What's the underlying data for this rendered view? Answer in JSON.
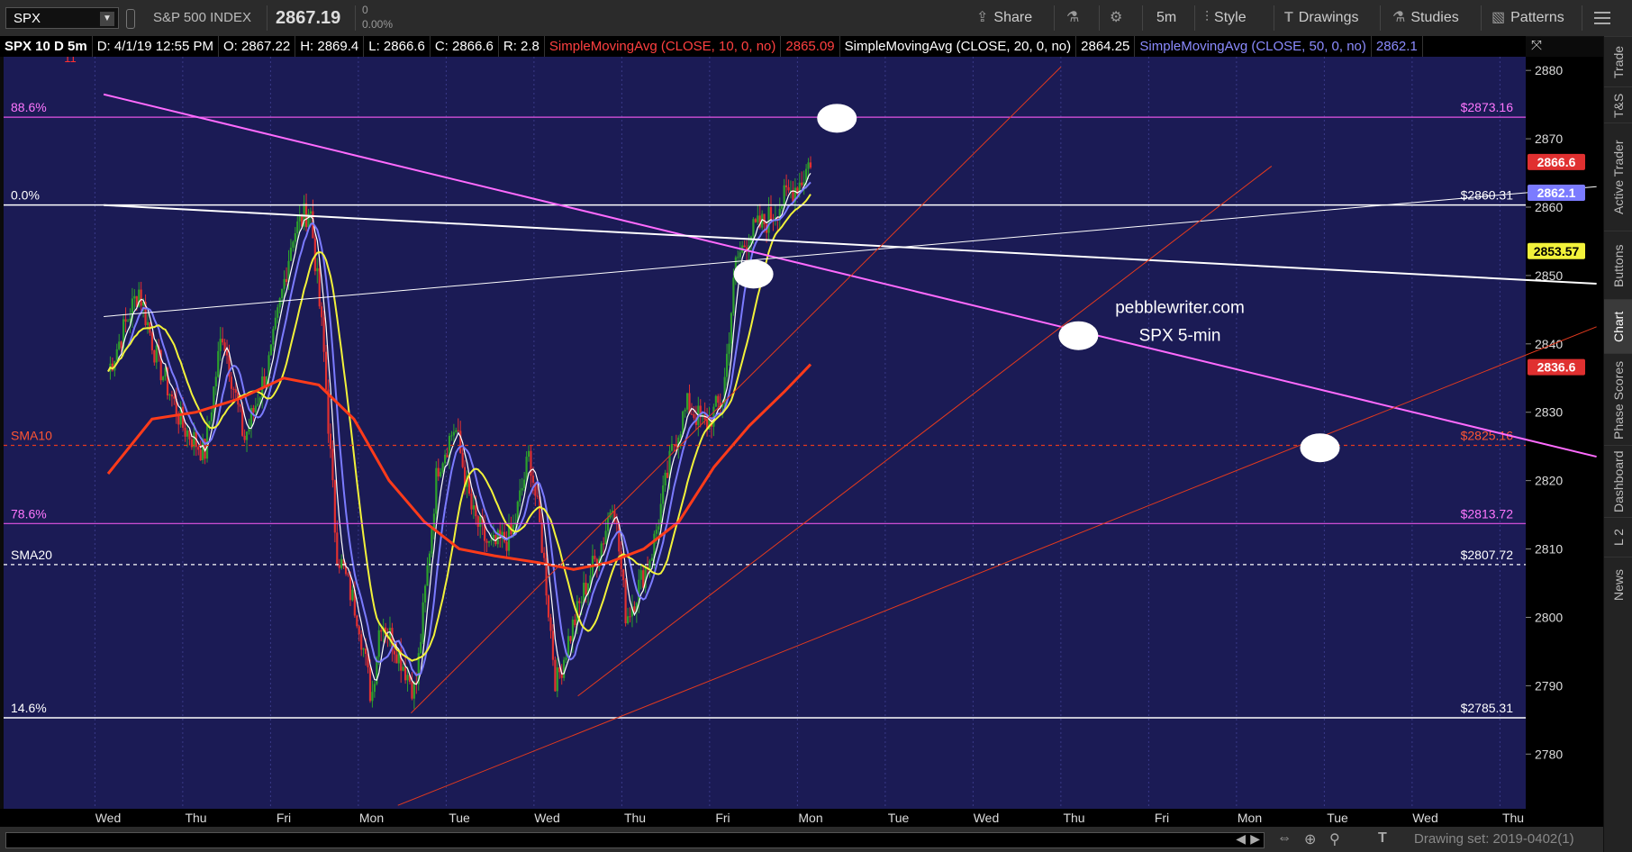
{
  "toolbar": {
    "symbol": "SPX",
    "description": "S&P 500 INDEX",
    "last_price": "2867.19",
    "change": "0",
    "change_pct": "0.00%",
    "share_label": "Share",
    "timeframe_label": "5m",
    "style_label": "Style",
    "drawings_label": "Drawings",
    "studies_label": "Studies",
    "patterns_label": "Patterns"
  },
  "infobar": {
    "chart_label": "SPX 10 D 5m",
    "date": "D: 4/1/19 12:55 PM",
    "open": "O: 2867.22",
    "high": "H: 2869.4",
    "low": "L: 2866.6",
    "close": "C: 2866.6",
    "range": "R: 2.8",
    "sma10_label": "SimpleMovingAvg (CLOSE, 10, 0, no)",
    "sma10_value": "2865.09",
    "sma20_label": "SimpleMovingAvg (CLOSE, 20, 0, no)",
    "sma20_value": "2864.25",
    "sma50_label": "SimpleMovingAvg (CLOSE, 50, 0, no)",
    "sma50_value": "2862.1"
  },
  "sidebar": {
    "tabs": [
      "Trade",
      "T&S",
      "Active Trader",
      "Buttons",
      "Chart",
      "Phase Scores",
      "Dashboard",
      "L 2",
      "News"
    ],
    "active": "Chart"
  },
  "bottombar": {
    "drawing_set": "Drawing set: 2019-0402(1)"
  },
  "colors": {
    "plot_bg": "#1b1b55",
    "up_candle": "#2ca02c",
    "down_candle": "#e03030",
    "sma10": "#ffffff",
    "sma20": "#7b7bff",
    "sma50": "#f2f23a",
    "sma_long": "#ff3b1a",
    "fib_line": "#e455e4",
    "trend_red": "#e33a1e",
    "white_line": "#ffffff"
  },
  "chart_data": {
    "type": "candlestick",
    "watermark": [
      "pebblewriter.com",
      "SPX 5-min"
    ],
    "ylim": [
      2772,
      2882
    ],
    "yticks": [
      2780,
      2790,
      2800,
      2810,
      2820,
      2830,
      2840,
      2850,
      2860,
      2870,
      2880
    ],
    "x_days": [
      "Wed",
      "Thu",
      "Fri",
      "Mon",
      "Tue",
      "Wed",
      "Thu",
      "Fri",
      "Mon",
      "Tue",
      "Wed",
      "Thu",
      "Fri",
      "Mon",
      "Tue",
      "Wed",
      "Thu"
    ],
    "x_labels": [
      "Wed",
      "Thu",
      "Fri",
      "Mon",
      "Tue",
      "Wed",
      "Thu",
      "Fri",
      "Mon",
      "Tue",
      "Wed",
      "Thu",
      "Fri",
      "Mon",
      "Tue",
      "Wed",
      "Thu"
    ],
    "last_data_day": 9.0,
    "price_checkpoints": [
      [
        0.0,
        2836
      ],
      [
        0.35,
        2848
      ],
      [
        0.55,
        2838
      ],
      [
        0.85,
        2828
      ],
      [
        1.1,
        2824
      ],
      [
        1.3,
        2842
      ],
      [
        1.55,
        2826
      ],
      [
        1.85,
        2838
      ],
      [
        2.1,
        2856
      ],
      [
        2.3,
        2860
      ],
      [
        2.45,
        2840
      ],
      [
        2.6,
        2810
      ],
      [
        2.85,
        2800
      ],
      [
        3.0,
        2788
      ],
      [
        3.1,
        2800
      ],
      [
        3.3,
        2795
      ],
      [
        3.5,
        2789
      ],
      [
        3.75,
        2822
      ],
      [
        3.95,
        2828
      ],
      [
        4.15,
        2815
      ],
      [
        4.35,
        2810
      ],
      [
        4.6,
        2812
      ],
      [
        4.8,
        2824
      ],
      [
        4.95,
        2810
      ],
      [
        5.1,
        2790
      ],
      [
        5.25,
        2797
      ],
      [
        5.45,
        2805
      ],
      [
        5.65,
        2812
      ],
      [
        5.75,
        2818
      ],
      [
        5.9,
        2800
      ],
      [
        6.0,
        2803
      ],
      [
        6.2,
        2810
      ],
      [
        6.45,
        2826
      ],
      [
        6.6,
        2831
      ],
      [
        6.8,
        2828
      ],
      [
        7.0,
        2832
      ],
      [
        7.15,
        2852
      ],
      [
        7.3,
        2856
      ],
      [
        7.5,
        2858
      ],
      [
        7.75,
        2862
      ],
      [
        7.9,
        2864
      ],
      [
        8.0,
        2867
      ]
    ],
    "sma_long_values": [
      [
        0.0,
        2821
      ],
      [
        0.5,
        2829
      ],
      [
        1.0,
        2830
      ],
      [
        1.5,
        2832
      ],
      [
        2.0,
        2835
      ],
      [
        2.4,
        2834
      ],
      [
        2.8,
        2829
      ],
      [
        3.2,
        2820
      ],
      [
        3.6,
        2814
      ],
      [
        4.0,
        2810
      ],
      [
        4.4,
        2809
      ],
      [
        4.9,
        2808
      ],
      [
        5.3,
        2807
      ],
      [
        5.7,
        2808
      ],
      [
        6.1,
        2810
      ],
      [
        6.5,
        2814
      ],
      [
        6.9,
        2822
      ],
      [
        7.3,
        2828
      ],
      [
        7.7,
        2833
      ],
      [
        8.0,
        2837
      ]
    ],
    "horizontal_levels": [
      {
        "left_label": "88.6%",
        "right_label": "$2873.16",
        "price": 2873.16,
        "style": "fib"
      },
      {
        "left_label": "0.0%",
        "right_label": "$2860.31",
        "price": 2860.31,
        "style": "white"
      },
      {
        "left_label": "SMA10",
        "right_label": "$2825.16",
        "price": 2825.16,
        "style": "red-dash"
      },
      {
        "left_label": "78.6%",
        "right_label": "$2813.72",
        "price": 2813.72,
        "style": "fib"
      },
      {
        "left_label": "SMA20",
        "right_label": "$2807.72",
        "price": 2807.72,
        "style": "white-dash"
      },
      {
        "left_label": "14.6%",
        "right_label": "$2785.31",
        "price": 2785.31,
        "style": "white"
      }
    ],
    "price_tags": [
      {
        "text": "2866.6",
        "price": 2866.6,
        "bg": "#e03030",
        "fg": "#ffffff"
      },
      {
        "text": "2862.1",
        "price": 2862.1,
        "bg": "#7b7bff",
        "fg": "#ffffff"
      },
      {
        "text": "2853.57",
        "price": 2853.57,
        "bg": "#f2f23a",
        "fg": "#000000"
      },
      {
        "text": "2836.6",
        "price": 2836.6,
        "bg": "#e03030",
        "fg": "#ffffff"
      }
    ],
    "trend_lines": [
      {
        "color": "#ff6bff",
        "width": 2,
        "from": [
          -0.05,
          2876.5
        ],
        "to": [
          16.95,
          2823.5
        ]
      },
      {
        "color": "#ffffff",
        "width": 2,
        "from": [
          -0.05,
          2860.3
        ],
        "to": [
          16.95,
          2848.8
        ]
      },
      {
        "color": "#ffffff",
        "width": 1,
        "from": [
          -0.05,
          2844.0
        ],
        "to": [
          16.95,
          2863.0
        ]
      },
      {
        "color": "#e33a1e",
        "width": 1,
        "from": [
          3.45,
          2786.0
        ],
        "to": [
          10.85,
          2880.5
        ]
      },
      {
        "color": "#e33a1e",
        "width": 1,
        "from": [
          5.35,
          2788.5
        ],
        "to": [
          13.25,
          2866.0
        ]
      },
      {
        "color": "#e33a1e",
        "width": 1,
        "from": [
          3.3,
          2772.5
        ],
        "to": [
          16.95,
          2842.5
        ]
      }
    ],
    "highlight_ellipses": [
      {
        "x": 8.3,
        "price": 2873.0
      },
      {
        "x": 7.35,
        "price": 2850.2
      },
      {
        "x": 11.05,
        "price": 2841.2
      },
      {
        "x": 13.8,
        "price": 2824.8
      }
    ],
    "hi_marker": "11"
  }
}
